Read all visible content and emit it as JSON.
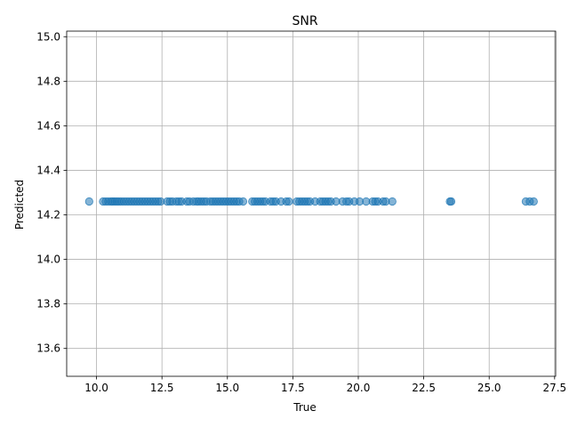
{
  "chart_data": {
    "type": "scatter",
    "title": "SNR",
    "xlabel": "True",
    "ylabel": "Predicted",
    "xlim": [
      8.86,
      27.54
    ],
    "ylim": [
      13.475,
      15.025
    ],
    "xticks": [
      "10.0",
      "12.5",
      "15.0",
      "17.5",
      "20.0",
      "22.5",
      "25.0",
      "27.5"
    ],
    "xtick_values": [
      10.0,
      12.5,
      15.0,
      17.5,
      20.0,
      22.5,
      25.0,
      27.5
    ],
    "yticks": [
      "13.6",
      "13.8",
      "14.0",
      "14.2",
      "14.4",
      "14.6",
      "14.8",
      "15.0"
    ],
    "ytick_values": [
      13.6,
      13.8,
      14.0,
      14.2,
      14.4,
      14.6,
      14.8,
      15.0
    ],
    "grid": true,
    "marker_color": "#1f77b4",
    "marker_alpha": 0.55,
    "series": [
      {
        "points": [
          [
            9.72,
            14.26
          ],
          [
            10.25,
            14.26
          ],
          [
            10.35,
            14.26
          ],
          [
            10.45,
            14.26
          ],
          [
            10.55,
            14.26
          ],
          [
            10.62,
            14.26
          ],
          [
            10.7,
            14.26
          ],
          [
            10.78,
            14.26
          ],
          [
            10.86,
            14.26
          ],
          [
            10.95,
            14.26
          ],
          [
            11.05,
            14.26
          ],
          [
            11.15,
            14.26
          ],
          [
            11.25,
            14.26
          ],
          [
            11.35,
            14.26
          ],
          [
            11.45,
            14.26
          ],
          [
            11.55,
            14.26
          ],
          [
            11.65,
            14.26
          ],
          [
            11.75,
            14.26
          ],
          [
            11.85,
            14.26
          ],
          [
            11.95,
            14.26
          ],
          [
            12.05,
            14.26
          ],
          [
            12.15,
            14.26
          ],
          [
            12.25,
            14.26
          ],
          [
            12.35,
            14.26
          ],
          [
            12.45,
            14.26
          ],
          [
            12.7,
            14.26
          ],
          [
            12.8,
            14.26
          ],
          [
            12.9,
            14.26
          ],
          [
            13.05,
            14.26
          ],
          [
            13.15,
            14.26
          ],
          [
            13.25,
            14.26
          ],
          [
            13.45,
            14.26
          ],
          [
            13.55,
            14.26
          ],
          [
            13.7,
            14.26
          ],
          [
            13.82,
            14.26
          ],
          [
            13.9,
            14.26
          ],
          [
            14.0,
            14.26
          ],
          [
            14.1,
            14.26
          ],
          [
            14.2,
            14.26
          ],
          [
            14.35,
            14.26
          ],
          [
            14.45,
            14.26
          ],
          [
            14.55,
            14.26
          ],
          [
            14.65,
            14.26
          ],
          [
            14.75,
            14.26
          ],
          [
            14.85,
            14.26
          ],
          [
            14.95,
            14.26
          ],
          [
            15.05,
            14.26
          ],
          [
            15.15,
            14.26
          ],
          [
            15.25,
            14.26
          ],
          [
            15.35,
            14.26
          ],
          [
            15.45,
            14.26
          ],
          [
            15.6,
            14.26
          ],
          [
            15.95,
            14.26
          ],
          [
            16.05,
            14.26
          ],
          [
            16.15,
            14.26
          ],
          [
            16.25,
            14.26
          ],
          [
            16.35,
            14.26
          ],
          [
            16.45,
            14.26
          ],
          [
            16.65,
            14.26
          ],
          [
            16.75,
            14.26
          ],
          [
            16.85,
            14.26
          ],
          [
            17.05,
            14.26
          ],
          [
            17.25,
            14.26
          ],
          [
            17.35,
            14.26
          ],
          [
            17.65,
            14.26
          ],
          [
            17.75,
            14.26
          ],
          [
            17.85,
            14.26
          ],
          [
            17.95,
            14.26
          ],
          [
            18.05,
            14.26
          ],
          [
            18.15,
            14.26
          ],
          [
            18.35,
            14.26
          ],
          [
            18.55,
            14.26
          ],
          [
            18.65,
            14.26
          ],
          [
            18.75,
            14.26
          ],
          [
            18.85,
            14.26
          ],
          [
            18.95,
            14.26
          ],
          [
            19.15,
            14.26
          ],
          [
            19.4,
            14.26
          ],
          [
            19.55,
            14.26
          ],
          [
            19.65,
            14.26
          ],
          [
            19.85,
            14.26
          ],
          [
            20.05,
            14.26
          ],
          [
            20.3,
            14.26
          ],
          [
            20.55,
            14.26
          ],
          [
            20.65,
            14.26
          ],
          [
            20.75,
            14.26
          ],
          [
            20.95,
            14.26
          ],
          [
            21.05,
            14.26
          ],
          [
            21.3,
            14.26
          ],
          [
            23.5,
            14.26
          ],
          [
            23.55,
            14.26
          ],
          [
            26.4,
            14.26
          ],
          [
            26.55,
            14.26
          ],
          [
            26.7,
            14.26
          ]
        ]
      }
    ]
  }
}
